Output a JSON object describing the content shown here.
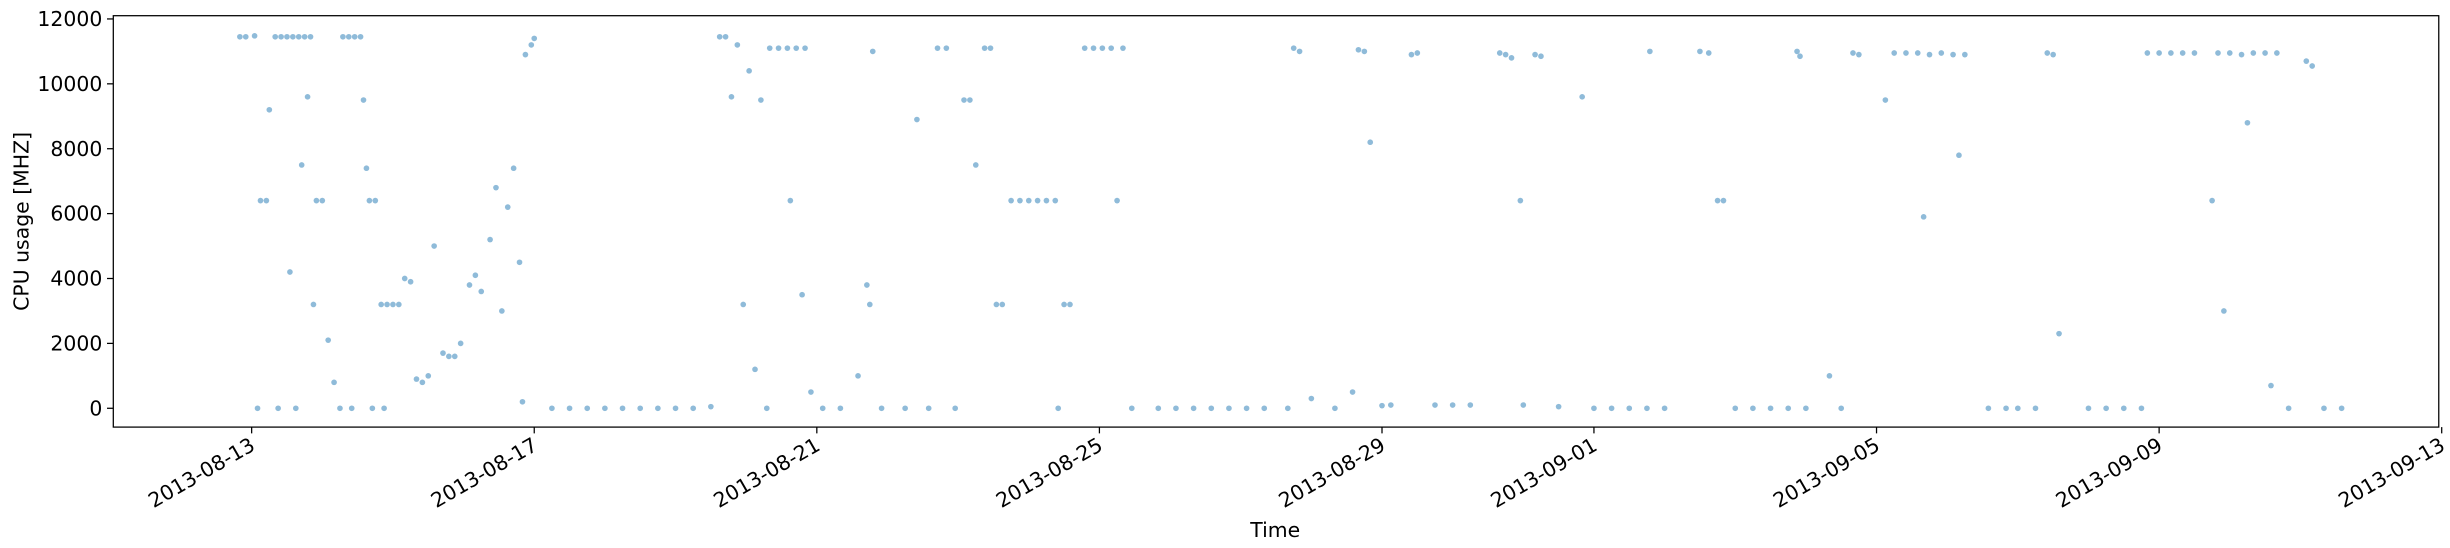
{
  "chart_data": {
    "type": "scatter",
    "x_label": "Time",
    "y_label": "CPU usage [MHZ]",
    "color": "#1f77b4",
    "xlim": [
      "2013-08-11 01:00",
      "2013-09-12 23:00"
    ],
    "xticks": [
      "2013-08-13",
      "2013-08-17",
      "2013-08-21",
      "2013-08-25",
      "2013-08-29",
      "2013-09-01",
      "2013-09-05",
      "2013-09-09",
      "2013-09-13"
    ],
    "ylim": [
      -580,
      12100
    ],
    "yticks": [
      0,
      2000,
      4000,
      6000,
      8000,
      10000,
      12000
    ],
    "x": [
      "2013-08-12 20:00",
      "2013-08-12 22:00",
      "2013-08-13 01:00",
      "2013-08-13 03:00",
      "2013-08-13 05:00",
      "2013-08-13 02:00",
      "2013-08-13 06:00",
      "2013-08-13 08:00",
      "2013-08-13 10:00",
      "2013-08-13 12:00",
      "2013-08-13 14:00",
      "2013-08-13 16:00",
      "2013-08-13 18:00",
      "2013-08-13 20:00",
      "2013-08-13 09:00",
      "2013-08-13 15:00",
      "2013-08-13 13:00",
      "2013-08-13 17:00",
      "2013-08-13 19:00",
      "2013-08-13 21:00",
      "2013-08-13 22:00",
      "2013-08-14 00:00",
      "2013-08-14 02:00",
      "2013-08-14 04:00",
      "2013-08-14 07:00",
      "2013-08-14 09:00",
      "2013-08-14 11:00",
      "2013-08-14 13:00",
      "2013-08-14 06:00",
      "2013-08-14 10:00",
      "2013-08-14 14:00",
      "2013-08-14 15:00",
      "2013-08-14 16:00",
      "2013-08-14 18:00",
      "2013-08-14 20:00",
      "2013-08-14 22:00",
      "2013-08-15 00:00",
      "2013-08-15 02:00",
      "2013-08-14 17:00",
      "2013-08-14 21:00",
      "2013-08-15 04:00",
      "2013-08-15 06:00",
      "2013-08-15 08:00",
      "2013-08-15 10:00",
      "2013-08-15 12:00",
      "2013-08-15 14:00",
      "2013-08-15 17:00",
      "2013-08-15 19:00",
      "2013-08-15 21:00",
      "2013-08-15 23:00",
      "2013-08-16 02:00",
      "2013-08-16 04:00",
      "2013-08-16 06:00",
      "2013-08-16 09:00",
      "2013-08-16 11:00",
      "2013-08-16 13:00",
      "2013-08-16 15:00",
      "2013-08-16 17:00",
      "2013-08-16 19:00",
      "2013-08-16 21:00",
      "2013-08-16 23:00",
      "2013-08-17 00:00",
      "2013-08-16 20:00",
      "2013-08-17 06:00",
      "2013-08-17 18:00",
      "2013-08-18 06:00",
      "2013-08-18 18:00",
      "2013-08-19 06:00",
      "2013-08-19 12:00",
      "2013-08-19 15:00",
      "2013-08-19 17:00",
      "2013-08-19 19:00",
      "2013-08-19 21:00",
      "2013-08-19 23:00",
      "2013-08-20 01:00",
      "2013-08-20 03:00",
      "2013-08-20 05:00",
      "2013-08-20 08:00",
      "2013-08-20 11:00",
      "2013-08-20 14:00",
      "2013-08-20 17:00",
      "2013-08-20 20:00",
      "2013-08-20 07:00",
      "2013-08-20 15:00",
      "2013-08-20 19:00",
      "2013-08-20 22:00",
      "2013-08-21 02:00",
      "2013-08-21 08:00",
      "2013-08-21 14:00",
      "2013-08-21 17:00",
      "2013-08-21 18:00",
      "2013-08-21 19:00",
      "2013-08-21 22:00",
      "2013-08-22 06:00",
      "2013-08-22 10:00",
      "2013-08-22 14:00",
      "2013-08-22 17:00",
      "2013-08-22 20:00",
      "2013-08-22 23:00",
      "2013-08-23 02:00",
      "2013-08-23 04:00",
      "2013-08-23 06:00",
      "2013-08-23 09:00",
      "2013-08-23 11:00",
      "2013-08-23 13:00",
      "2013-08-23 15:00",
      "2013-08-23 18:00",
      "2013-08-23 21:00",
      "2013-08-24 00:00",
      "2013-08-24 03:00",
      "2013-08-24 06:00",
      "2013-08-24 09:00",
      "2013-08-24 12:00",
      "2013-08-24 14:00",
      "2013-08-24 10:00",
      "2013-08-24 19:00",
      "2013-08-24 22:00",
      "2013-08-25 01:00",
      "2013-08-25 04:00",
      "2013-08-25 08:00",
      "2013-08-25 06:00",
      "2013-08-25 11:00",
      "2013-08-25 20:00",
      "2013-08-26 08:00",
      "2013-08-26 20:00",
      "2013-08-27 08:00",
      "2013-08-27 16:00",
      "2013-08-27 18:00",
      "2013-08-27 20:00",
      "2013-08-28 00:00",
      "2013-08-28 08:00",
      "2013-08-28 14:00",
      "2013-08-28 16:00",
      "2013-08-28 18:00",
      "2013-08-28 20:00",
      "2013-08-29 03:00",
      "2013-08-29 10:00",
      "2013-08-29 12:00",
      "2013-08-29 18:00",
      "2013-08-30 06:00",
      "2013-08-30 16:00",
      "2013-08-30 18:00",
      "2013-08-30 20:00",
      "2013-08-30 23:00",
      "2013-08-31 04:00",
      "2013-08-31 06:00",
      "2013-08-31 12:00",
      "2013-08-31 20:00",
      "2013-09-01 00:00",
      "2013-09-01 12:00",
      "2013-09-01 19:00",
      "2013-09-02 00:00",
      "2013-09-02 12:00",
      "2013-09-02 15:00",
      "2013-09-02 18:00",
      "2013-09-02 20:00",
      "2013-09-03 00:00",
      "2013-09-03 12:00",
      "2013-09-03 21:00",
      "2013-09-03 22:00",
      "2013-09-04 08:00",
      "2013-09-04 12:00",
      "2013-09-04 16:00",
      "2013-09-04 18:00",
      "2013-09-05 03:00",
      "2013-09-05 06:00",
      "2013-09-05 10:00",
      "2013-09-05 14:00",
      "2013-09-05 18:00",
      "2013-09-05 22:00",
      "2013-09-06 02:00",
      "2013-09-06 06:00",
      "2013-09-05 16:00",
      "2013-09-06 04:00",
      "2013-09-06 14:00",
      "2013-09-07 00:00",
      "2013-09-07 10:00",
      "2013-09-07 12:00",
      "2013-09-07 14:00",
      "2013-09-08 00:00",
      "2013-09-08 12:00",
      "2013-09-08 20:00",
      "2013-09-09 00:00",
      "2013-09-09 04:00",
      "2013-09-09 08:00",
      "2013-09-09 12:00",
      "2013-09-09 18:00",
      "2013-09-09 20:00",
      "2013-09-10 00:00",
      "2013-09-10 04:00",
      "2013-09-10 08:00",
      "2013-09-10 12:00",
      "2013-09-10 16:00",
      "2013-09-09 22:00",
      "2013-09-10 06:00",
      "2013-09-10 14:00",
      "2013-09-10 20:00",
      "2013-09-11 02:00",
      "2013-09-11 04:00",
      "2013-09-11 08:00",
      "2013-08-17 12:00",
      "2013-08-18 00:00",
      "2013-08-18 12:00",
      "2013-08-19 00:00",
      "2013-08-26 02:00",
      "2013-08-26 14:00",
      "2013-08-27 02:00",
      "2013-08-29 00:00",
      "2013-08-30 00:00",
      "2013-08-31 00:00",
      "2013-09-01 06:00",
      "2013-09-01 18:00",
      "2013-09-03 06:00",
      "2013-09-03 18:00",
      "2013-09-04 00:00",
      "2013-09-06 20:00",
      "2013-09-07 06:00",
      "2013-09-08 06:00",
      "2013-09-08 18:00",
      "2013-09-11 14:00"
    ],
    "values": [
      11450,
      11450,
      11480,
      6400,
      6400,
      0,
      9200,
      11450,
      11450,
      11450,
      11450,
      11450,
      11450,
      11450,
      0,
      0,
      4200,
      7500,
      9600,
      3200,
      6400,
      6400,
      2100,
      800,
      11450,
      11450,
      11450,
      11450,
      0,
      0,
      9500,
      7400,
      6400,
      6400,
      3200,
      3200,
      3200,
      3200,
      0,
      0,
      4000,
      3900,
      900,
      800,
      1000,
      5000,
      1700,
      1600,
      1600,
      2000,
      3800,
      4100,
      3600,
      5200,
      6800,
      3000,
      6200,
      7400,
      4500,
      10900,
      11200,
      11400,
      200,
      0,
      0,
      0,
      0,
      0,
      50,
      11450,
      11450,
      9600,
      11200,
      3200,
      10400,
      1200,
      9500,
      11100,
      11100,
      11100,
      11100,
      11100,
      0,
      6400,
      3500,
      500,
      0,
      0,
      1000,
      3800,
      3200,
      11000,
      0,
      0,
      8900,
      0,
      11100,
      11100,
      0,
      9500,
      9500,
      7500,
      11100,
      11100,
      3200,
      3200,
      6400,
      6400,
      6400,
      6400,
      6400,
      6400,
      3200,
      3200,
      0,
      11100,
      11100,
      11100,
      11100,
      11100,
      6400,
      0,
      0,
      0,
      0,
      0,
      0,
      11100,
      11000,
      300,
      0,
      500,
      11050,
      11000,
      8200,
      100,
      10900,
      10950,
      100,
      100,
      10950,
      10900,
      10800,
      6400,
      10900,
      10850,
      50,
      9600,
      0,
      0,
      11000,
      0,
      11000,
      10950,
      6400,
      6400,
      0,
      0,
      11000,
      10850,
      1000,
      0,
      10950,
      10900,
      9500,
      10950,
      10950,
      10950,
      10900,
      10950,
      10900,
      10900,
      5900,
      7800,
      0,
      0,
      10950,
      10900,
      2300,
      0,
      0,
      10950,
      10950,
      10950,
      10950,
      10950,
      6400,
      10950,
      10950,
      10900,
      10950,
      10950,
      10950,
      3000,
      8800,
      700,
      0,
      10700,
      10550,
      0,
      0,
      0,
      0,
      0,
      0,
      0,
      0,
      80,
      100,
      100,
      0,
      0,
      0,
      0,
      0,
      0,
      0,
      0,
      0,
      0
    ]
  }
}
